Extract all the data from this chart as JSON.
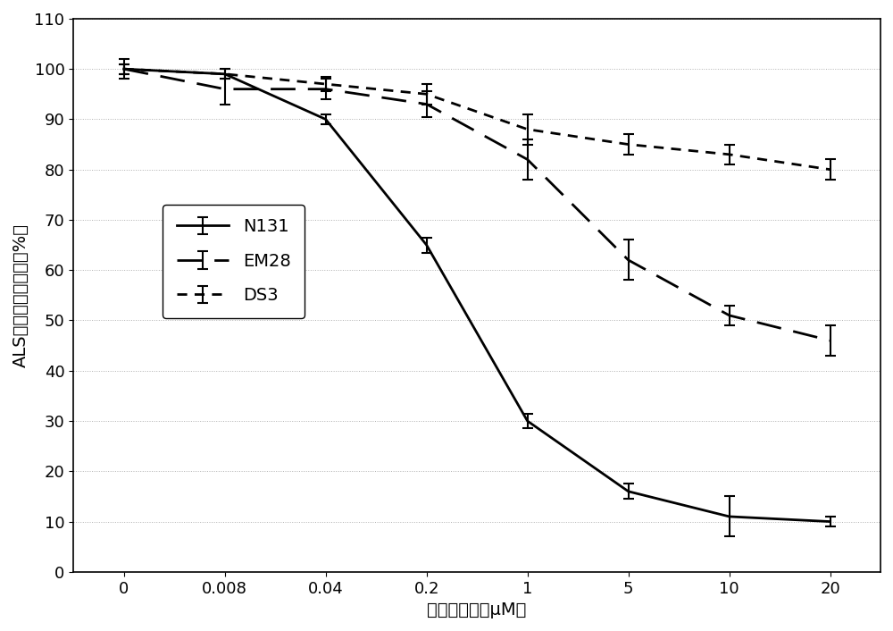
{
  "x_positions": [
    0,
    1,
    2,
    3,
    4,
    5,
    6,
    7
  ],
  "x_labels": [
    "0",
    "0.008",
    "0.04",
    "0.2",
    "1",
    "5",
    "10",
    "20"
  ],
  "N131_y": [
    100,
    99,
    90,
    65,
    30,
    16,
    11,
    10
  ],
  "N131_yerr": [
    2,
    1,
    1,
    1.5,
    1.5,
    1.5,
    4,
    1
  ],
  "EM28_y": [
    100,
    96,
    96,
    93,
    82,
    62,
    51,
    46
  ],
  "EM28_yerr": [
    1,
    3,
    2,
    2.5,
    4,
    4,
    2,
    3
  ],
  "DS3_y": [
    100,
    99,
    97,
    95,
    88,
    85,
    83,
    80
  ],
  "DS3_yerr": [
    1,
    1,
    1.5,
    2,
    3,
    2,
    2,
    2
  ],
  "xlabel": "苯磺降浓度（μM）",
  "ylabel": "ALS酶活（相对于对照%）",
  "ylim": [
    0,
    110
  ],
  "yticks": [
    0,
    10,
    20,
    30,
    40,
    50,
    60,
    70,
    80,
    90,
    100,
    110
  ],
  "legend_N131": "N131",
  "legend_EM28": "EM28",
  "legend_DS3": "DS3",
  "line_color": "#000000",
  "bg_color": "#ffffff",
  "grid_color": "#b0b0b0",
  "label_fontsize": 14,
  "tick_fontsize": 13,
  "legend_fontsize": 14,
  "N131_dashes": [
    1,
    0
  ],
  "EM28_dashes": [
    10,
    5
  ],
  "DS3_dashes": [
    4,
    3
  ]
}
